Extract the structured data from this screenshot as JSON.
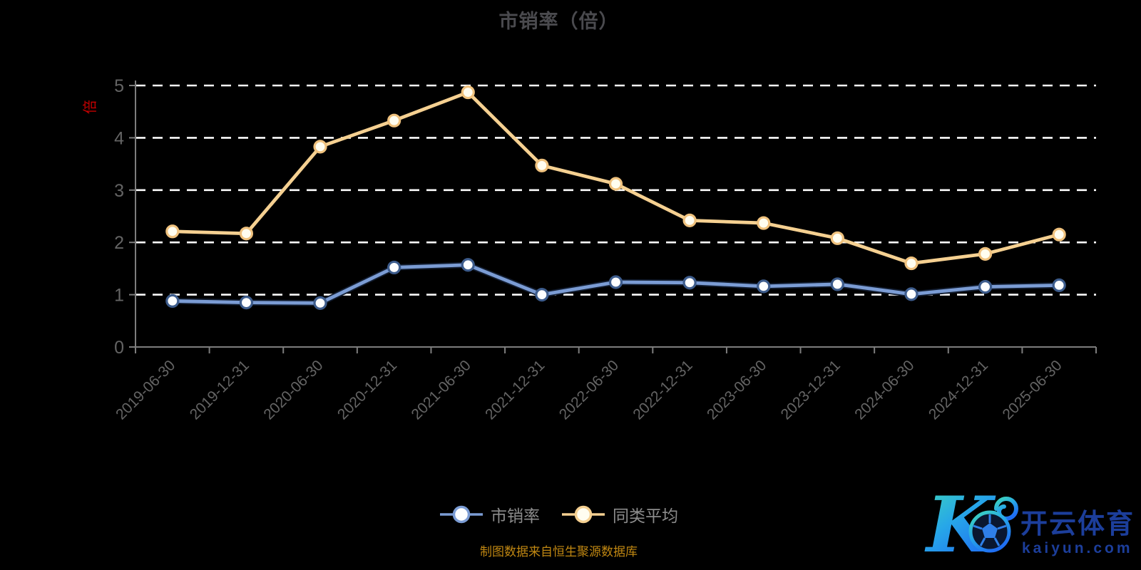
{
  "title": "市销率（倍）",
  "y_axis_name": "倍",
  "caption": "制图数据来自恒生聚源数据库",
  "watermark": {
    "brand": "开云体育",
    "domain": "kaiyun.com"
  },
  "colors": {
    "background": "#000000",
    "title_text": "#4a4a4e",
    "axis_line": "#7d7d7d",
    "axis_label": "#646464",
    "grid_line": "#fafafa",
    "y_axis_name_color": "#c40000",
    "legend_text": "#8c8c8c",
    "caption_text": "#c08712",
    "logo_text": "#1c3e9b",
    "logo_gradient_start": "#3fd9b8",
    "logo_gradient_end": "#1f6ef2"
  },
  "chart_data": {
    "type": "line",
    "title": "市销率（倍）",
    "categories": [
      "2019-06-30",
      "2019-12-31",
      "2020-06-30",
      "2020-12-31",
      "2021-06-30",
      "2021-12-31",
      "2022-06-30",
      "2022-12-31",
      "2023-06-30",
      "2023-12-31",
      "2024-06-30",
      "2024-12-31",
      "2025-06-30"
    ],
    "series": [
      {
        "name": "市销率",
        "color": "#7b9cd4",
        "casing_color": "#121d30",
        "marker_fill": "#fdfeff",
        "marker_stroke": "#3d5c8c",
        "values": [
          0.88,
          0.85,
          0.84,
          1.52,
          1.57,
          1.0,
          1.24,
          1.23,
          1.16,
          1.2,
          1.01,
          1.15,
          1.18
        ]
      },
      {
        "name": "同类平均",
        "color": "#f5d091",
        "casing_color": null,
        "marker_fill": "#fffdf0",
        "marker_stroke": "#f0c27e",
        "values": [
          2.21,
          2.17,
          3.83,
          4.33,
          4.87,
          3.47,
          3.12,
          2.42,
          2.37,
          2.08,
          1.6,
          1.78,
          2.15
        ]
      }
    ],
    "xlabel": "",
    "ylabel": "倍",
    "ylim": [
      0,
      5
    ],
    "y_ticks": [
      0,
      1,
      2,
      3,
      4,
      5
    ],
    "grid": "horizontal white dashed lines at each integer, no gridline at 0",
    "legend_position": "bottom-center",
    "x_label_rotation": -45
  }
}
